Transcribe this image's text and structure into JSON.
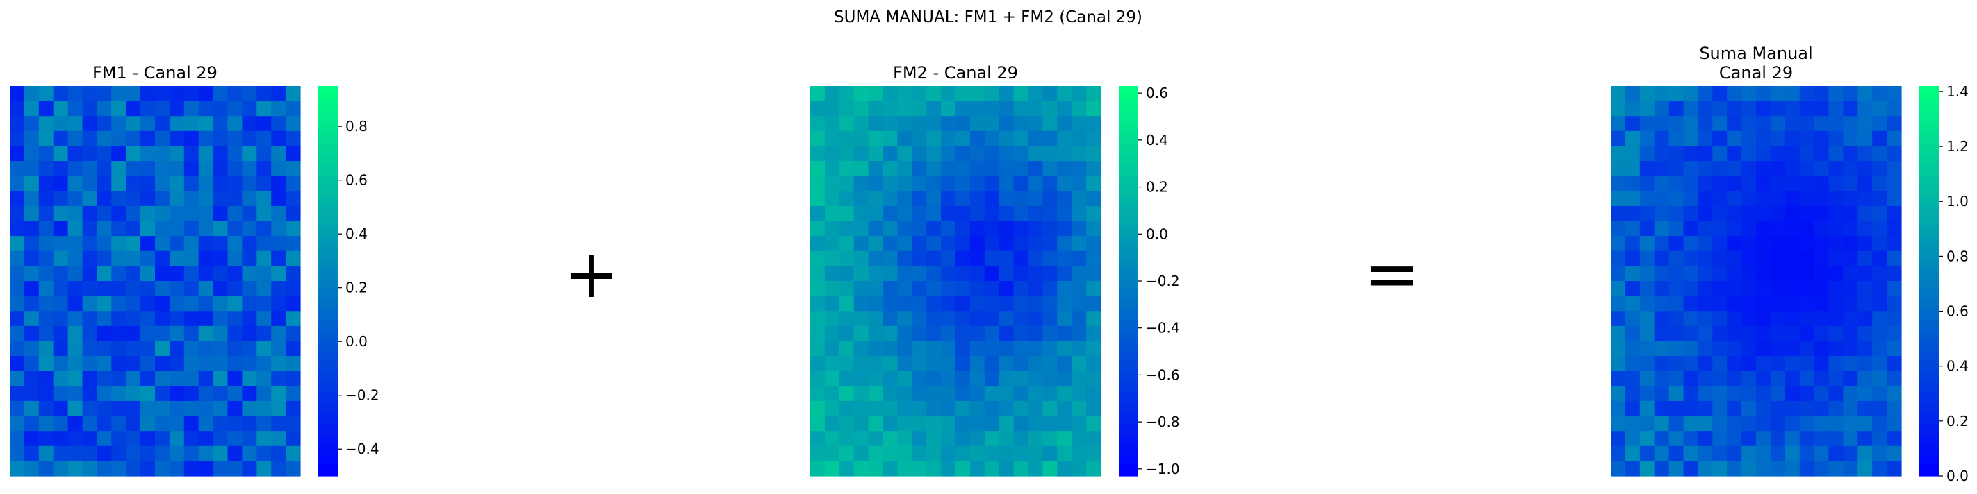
{
  "figure_title": "SUMA MANUAL: FM1 + FM2 (Canal 29)",
  "operators": {
    "plus": "+",
    "equals": "="
  },
  "colors": {
    "cmap_low": "#0000ff",
    "cmap_high": "#00ff80",
    "background": "#ffffff",
    "text": "#000000"
  },
  "chart_data": [
    {
      "type": "heatmap",
      "title": "FM1 - Canal 29",
      "colormap": "winter",
      "rows": 26,
      "cols": 20,
      "vmin": -0.5,
      "vmax": 0.95,
      "colorbar_ticks": [
        "0.8",
        "0.6",
        "0.4",
        "0.2",
        "0.0",
        "−0.2",
        "−0.4"
      ],
      "colorbar_tick_values": [
        0.8,
        0.6,
        0.4,
        0.2,
        0.0,
        -0.2,
        -0.4
      ],
      "xlabel": "",
      "ylabel": "",
      "grid": false
    },
    {
      "type": "heatmap",
      "title": "FM2 - Canal 29",
      "colormap": "winter",
      "rows": 26,
      "cols": 20,
      "vmin": -1.03,
      "vmax": 0.63,
      "colorbar_ticks": [
        "0.6",
        "0.4",
        "0.2",
        "0.0",
        "−0.2",
        "−0.4",
        "−0.6",
        "−0.8",
        "−1.0"
      ],
      "colorbar_tick_values": [
        0.6,
        0.4,
        0.2,
        0.0,
        -0.2,
        -0.4,
        -0.6,
        -0.8,
        -1.0
      ],
      "xlabel": "",
      "ylabel": "",
      "grid": false
    },
    {
      "type": "heatmap",
      "title_lines": [
        "Suma Manual",
        "Canal 29"
      ],
      "colormap": "winter",
      "rows": 26,
      "cols": 20,
      "vmin": 0.0,
      "vmax": 1.42,
      "colorbar_ticks": [
        "1.4",
        "1.2",
        "1.0",
        "0.8",
        "0.6",
        "0.4",
        "0.2",
        "0.0"
      ],
      "colorbar_tick_values": [
        1.4,
        1.2,
        1.0,
        0.8,
        0.6,
        0.4,
        0.2,
        0.0
      ],
      "xlabel": "",
      "ylabel": "",
      "grid": false
    }
  ]
}
